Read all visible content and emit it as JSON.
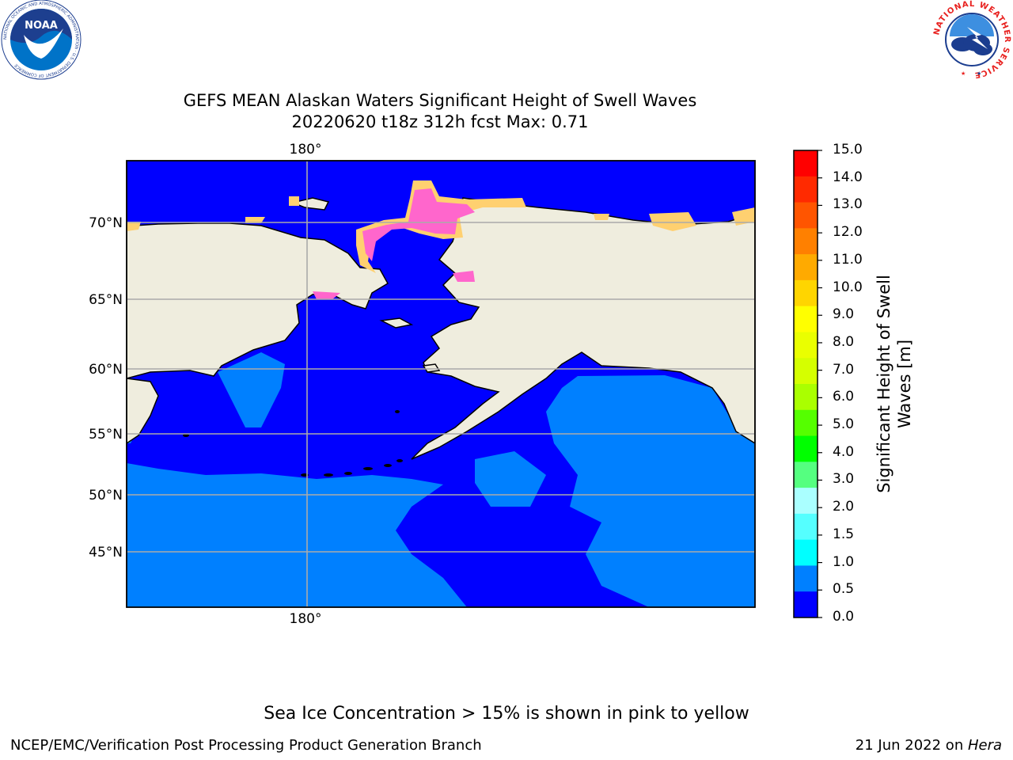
{
  "header": {
    "title_line1": "GEFS MEAN Alaskan Waters Significant Height of Swell Waves",
    "title_line2": "20220620 t18z 312h fcst   Max: 0.71"
  },
  "logos": {
    "noaa_text": "NOAA",
    "noaa_ring_text": "NATIONAL OCEANIC AND ATMOSPHERIC ADMINISTRATION · U.S. DEPARTMENT OF COMMERCE",
    "nws_ring_text": "NATIONAL WEATHER SERVICE"
  },
  "map": {
    "lon_label_top": "180°",
    "lon_label_bottom": "180°",
    "lat_labels": [
      "70°N",
      "65°N",
      "60°N",
      "55°N",
      "50°N",
      "45°N"
    ],
    "colors": {
      "land": "#efedde",
      "ocean_low": "#0000ff",
      "ocean_mid": "#0080ff",
      "ice_pink": "#ff66cc",
      "ice_orange": "#ffb04c",
      "ice_yellow": "#ffd070",
      "grid": "#aaaaaa"
    }
  },
  "colorbar": {
    "title_line1": "Significant Height of Swell",
    "title_line2": "Waves [m]",
    "ticks": [
      "15.0",
      "14.0",
      "13.0",
      "12.0",
      "11.0",
      "10.0",
      "9.0",
      "8.0",
      "7.0",
      "6.0",
      "5.0",
      "4.0",
      "3.0",
      "2.0",
      "1.5",
      "1.0",
      "0.5",
      "0.0"
    ],
    "colors_top_to_bottom": [
      "#ff0000",
      "#ff2a00",
      "#ff5500",
      "#ff8000",
      "#ffaa00",
      "#ffd500",
      "#ffff00",
      "#eaff00",
      "#d5ff00",
      "#aaff00",
      "#55ff00",
      "#00ff00",
      "#55ff80",
      "#aaffff",
      "#55ffff",
      "#00ffff",
      "#0080ff",
      "#0000ff"
    ]
  },
  "footer": {
    "note": "Sea Ice Concentration > 15% is shown in pink to yellow",
    "left": "NCEP/EMC/Verification Post Processing Product Generation Branch",
    "right_prefix": "21 Jun 2022 on ",
    "right_italic": "Hera"
  }
}
